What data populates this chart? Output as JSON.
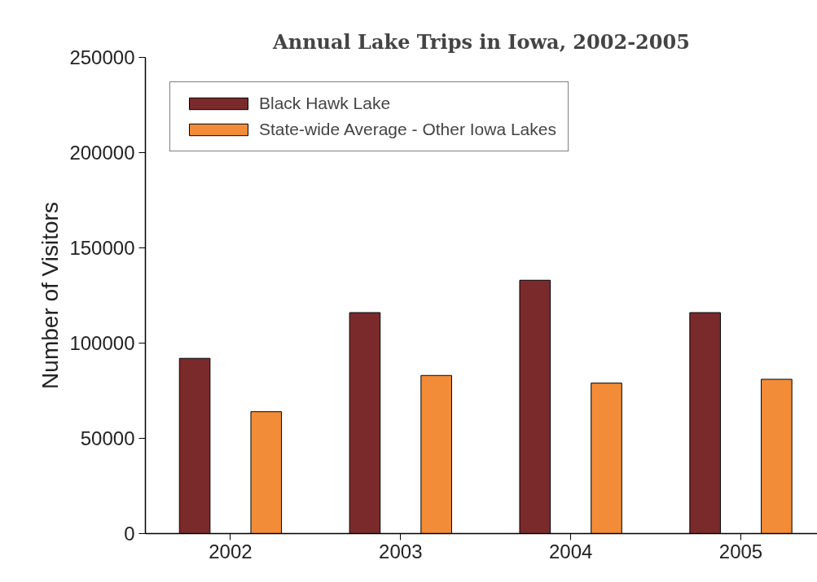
{
  "chart_data": {
    "type": "bar",
    "title": "Annual Lake Trips in Iowa, 2002-2005",
    "ylabel": "Number of Visitors",
    "categories": [
      "2002",
      "2003",
      "2004",
      "2005"
    ],
    "series": [
      {
        "name": "Black Hawk Lake",
        "color": "#7b2a2c",
        "values": [
          92000,
          116000,
          133000,
          116000
        ]
      },
      {
        "name": "State-wide Average - Other Iowa Lakes",
        "color": "#f28c38",
        "values": [
          64000,
          83000,
          79000,
          81000
        ]
      }
    ],
    "ylim": [
      0,
      250000
    ],
    "yticks": [
      0,
      50000,
      100000,
      150000,
      200000,
      250000
    ],
    "grid": false,
    "legend": "top left"
  }
}
